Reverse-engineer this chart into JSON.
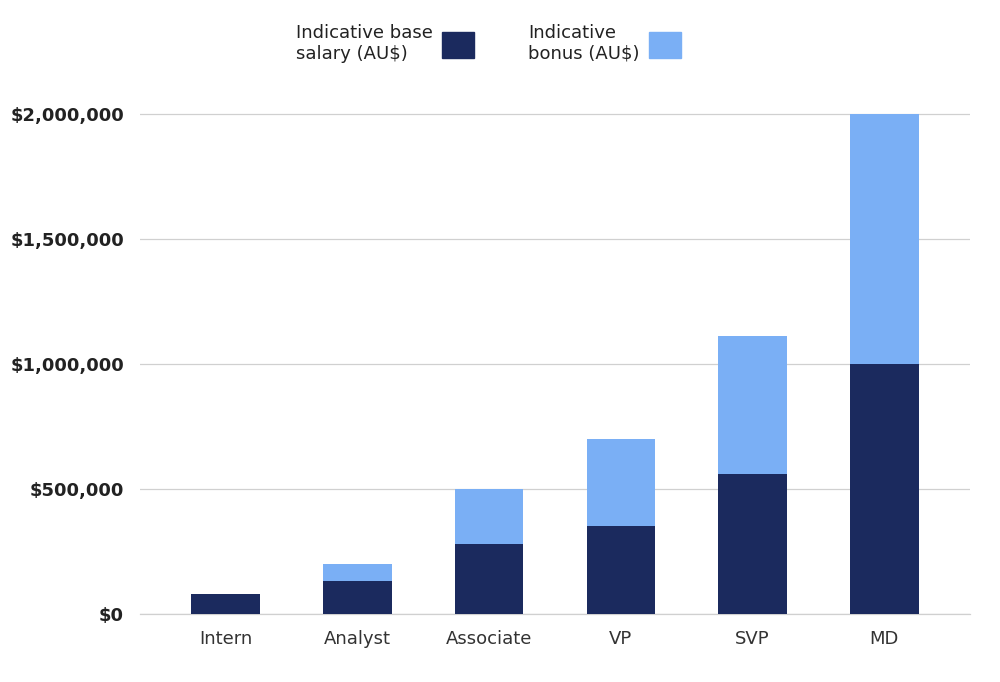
{
  "categories": [
    "Intern",
    "Analyst",
    "Associate",
    "VP",
    "SVP",
    "MD"
  ],
  "base_salary": [
    80000,
    130000,
    280000,
    350000,
    560000,
    1000000
  ],
  "bonus": [
    0,
    70000,
    220000,
    350000,
    550000,
    1000000
  ],
  "base_color": "#1b2a5e",
  "bonus_color": "#7aaff5",
  "background_color": "#ffffff",
  "grid_color": "#d0d0d0",
  "tick_label_color": "#222222",
  "x_label_color": "#333333",
  "legend_base_label": "Indicative base\nsalary (AU$)",
  "legend_bonus_label": "Indicative\nbonus (AU$)",
  "ylim": [
    0,
    2100000
  ],
  "yticks": [
    0,
    500000,
    1000000,
    1500000,
    2000000
  ],
  "bar_width": 0.52,
  "figsize": [
    10.0,
    6.82
  ],
  "dpi": 100
}
